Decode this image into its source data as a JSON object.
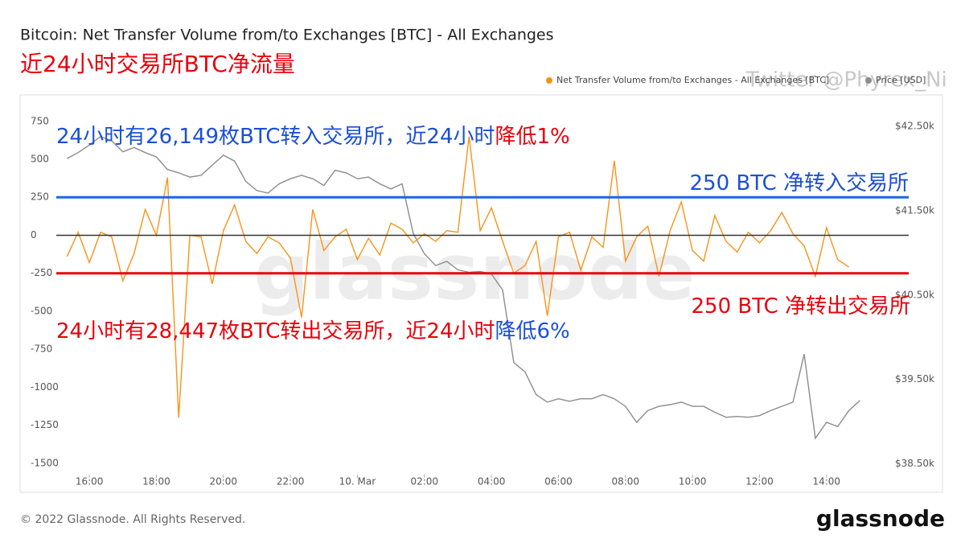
{
  "chart_data": {
    "type": "line",
    "title": "Bitcoin: Net Transfer Volume from/to Exchanges [BTC] - All Exchanges",
    "subtitle": "近24小时交易所BTC净流量",
    "watermark": "Twitter @Phyrex_Ni",
    "logo_watermark": "glassnode",
    "footer": "© 2022 Glassnode. All Rights Reserved.",
    "logo": "glassnode",
    "x": [
      "9. Mar 15:20",
      "9. Mar 15:40",
      "9. Mar 16:00",
      "9. Mar 16:20",
      "9. Mar 16:40",
      "9. Mar 17:00",
      "9. Mar 17:20",
      "9. Mar 17:40",
      "9. Mar 18:00",
      "9. Mar 18:20",
      "9. Mar 18:40",
      "9. Mar 19:00",
      "9. Mar 19:20",
      "9. Mar 19:40",
      "9. Mar 20:00",
      "9. Mar 20:20",
      "9. Mar 20:40",
      "9. Mar 21:00",
      "9. Mar 21:20",
      "9. Mar 21:40",
      "9. Mar 22:00",
      "9. Mar 22:20",
      "9. Mar 22:40",
      "9. Mar 23:00",
      "9. Mar 23:20",
      "9. Mar 23:40",
      "10. Mar 00:00",
      "10. Mar 00:20",
      "10. Mar 00:40",
      "10. Mar 01:00",
      "10. Mar 01:20",
      "10. Mar 01:40",
      "10. Mar 02:00",
      "10. Mar 02:20",
      "10. Mar 02:40",
      "10. Mar 03:00",
      "10. Mar 03:20",
      "10. Mar 03:40",
      "10. Mar 04:00",
      "10. Mar 04:20",
      "10. Mar 04:40",
      "10. Mar 05:00",
      "10. Mar 05:20",
      "10. Mar 05:40",
      "10. Mar 06:00",
      "10. Mar 06:20",
      "10. Mar 06:40",
      "10. Mar 07:00",
      "10. Mar 07:20",
      "10. Mar 07:40",
      "10. Mar 08:00",
      "10. Mar 08:20",
      "10. Mar 08:40",
      "10. Mar 09:00",
      "10. Mar 09:20",
      "10. Mar 09:40",
      "10. Mar 10:00",
      "10. Mar 10:20",
      "10. Mar 10:40",
      "10. Mar 11:00",
      "10. Mar 11:20",
      "10. Mar 11:40",
      "10. Mar 12:00",
      "10. Mar 12:20",
      "10. Mar 12:40",
      "10. Mar 13:00",
      "10. Mar 13:20",
      "10. Mar 13:40",
      "10. Mar 14:00",
      "10. Mar 14:20",
      "10. Mar 14:40",
      "10. Mar 15:00"
    ],
    "xlim": [
      "9. Mar 15:08",
      "10. Mar 15:44"
    ],
    "xticks": [
      {
        "value": "9. Mar 16:00",
        "label": "16:00"
      },
      {
        "value": "9. Mar 18:00",
        "label": "18:00"
      },
      {
        "value": "9. Mar 20:00",
        "label": "20:00"
      },
      {
        "value": "9. Mar 22:00",
        "label": "22:00"
      },
      {
        "value": "10. Mar 00:00",
        "label": "10. Mar"
      },
      {
        "value": "10. Mar 02:00",
        "label": "02:00"
      },
      {
        "value": "10. Mar 04:00",
        "label": "04:00"
      },
      {
        "value": "10. Mar 06:00",
        "label": "06:00"
      },
      {
        "value": "10. Mar 08:00",
        "label": "08:00"
      },
      {
        "value": "10. Mar 10:00",
        "label": "10:00"
      },
      {
        "value": "10. Mar 12:00",
        "label": "12:00"
      },
      {
        "value": "10. Mar 14:00",
        "label": "14:00"
      }
    ],
    "ylim": [
      -1575,
      860
    ],
    "yticks": [
      750,
      500,
      250,
      0,
      -250,
      -500,
      -750,
      -1000,
      -1250,
      -1500
    ],
    "y2lim": [
      38370,
      42760
    ],
    "y2ticks": [
      {
        "value": 42500,
        "label": "$42.50k"
      },
      {
        "value": 41500,
        "label": "$41.50k"
      },
      {
        "value": 40500,
        "label": "$40.50k"
      },
      {
        "value": 39500,
        "label": "$39.50k"
      },
      {
        "value": 38500,
        "label": "$38.50k"
      }
    ],
    "series": [
      {
        "name": "Net Transfer Volume from/to Exchanges - All Exchanges [BTC]",
        "color": "#f7931a",
        "values": [
          -140,
          20,
          -180,
          20,
          -10,
          -300,
          -120,
          170,
          0,
          380,
          -1200,
          0,
          -10,
          -320,
          30,
          200,
          -40,
          -120,
          -10,
          -50,
          -150,
          -540,
          170,
          -100,
          -10,
          40,
          -160,
          -20,
          -130,
          80,
          40,
          -50,
          10,
          -40,
          30,
          20,
          650,
          30,
          180,
          -40,
          -250,
          -200,
          -40,
          -530,
          -10,
          20,
          -230,
          -10,
          -80,
          490,
          -170,
          -10,
          60,
          -270,
          30,
          220,
          -100,
          -170,
          130,
          -40,
          -110,
          20,
          -50,
          30,
          150,
          10,
          -70,
          -270,
          50,
          -160,
          -210,
          null
        ]
      },
      {
        "name": "Price [USD]",
        "color": "#8c8c8c",
        "axis": "y2",
        "values": [
          42120,
          42190,
          42280,
          42380,
          42330,
          42200,
          42250,
          42190,
          42140,
          41990,
          41950,
          41900,
          41920,
          42040,
          42160,
          42090,
          41850,
          41740,
          41710,
          41820,
          41880,
          41920,
          41880,
          41800,
          41980,
          41950,
          41880,
          41900,
          41820,
          41760,
          41820,
          41230,
          40990,
          40850,
          40900,
          40800,
          40770,
          40780,
          40750,
          40560,
          39700,
          39590,
          39320,
          39230,
          39270,
          39240,
          39270,
          39270,
          39320,
          39270,
          39180,
          38990,
          39130,
          39180,
          39200,
          39230,
          39180,
          39180,
          39110,
          39050,
          39060,
          39050,
          39070,
          39130,
          39180,
          39230,
          39800,
          38800,
          38990,
          38940,
          39130,
          39250
        ]
      }
    ],
    "reference_lines": [
      {
        "value": 0,
        "color": "#333333"
      },
      {
        "value": 250,
        "color": "#1a66e6"
      },
      {
        "value": -250,
        "color": "#e8000b"
      }
    ],
    "annotations": [
      {
        "parts": [
          {
            "text": "24小时有26,149枚BTC转入交易所，近24小时",
            "color": "#1a4fd6"
          },
          {
            "text": "降低1%",
            "color": "#e8000b"
          }
        ]
      },
      {
        "parts": [
          {
            "text": "24小时有28,447枚BTC转出交易所，近24小时",
            "color": "#e8000b"
          },
          {
            "text": "降低6%",
            "color": "#1a4fd6"
          }
        ]
      },
      {
        "parts": [
          {
            "text": "250 BTC 净转入交易所",
            "color": "#1a4fd6"
          }
        ]
      },
      {
        "parts": [
          {
            "text": "250 BTC 净转出交易所",
            "color": "#e8000b"
          }
        ]
      }
    ]
  }
}
